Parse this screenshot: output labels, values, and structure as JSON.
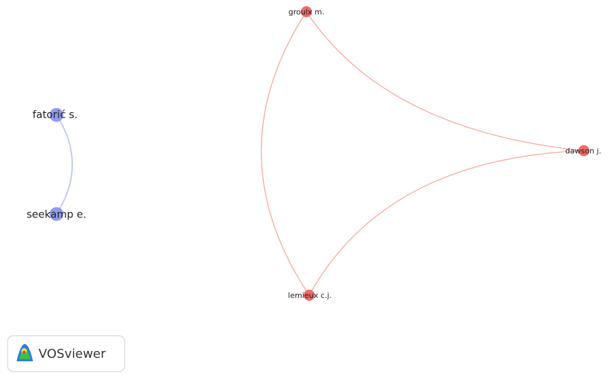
{
  "nodes": [
    {
      "label": "fatorić s."
    },
    {
      "label": "seekamp e."
    },
    {
      "label": "groulx m."
    },
    {
      "label": "dawson j."
    },
    {
      "label": "lemieux c.j."
    }
  ],
  "logo": {
    "text": "VOSviewer"
  }
}
